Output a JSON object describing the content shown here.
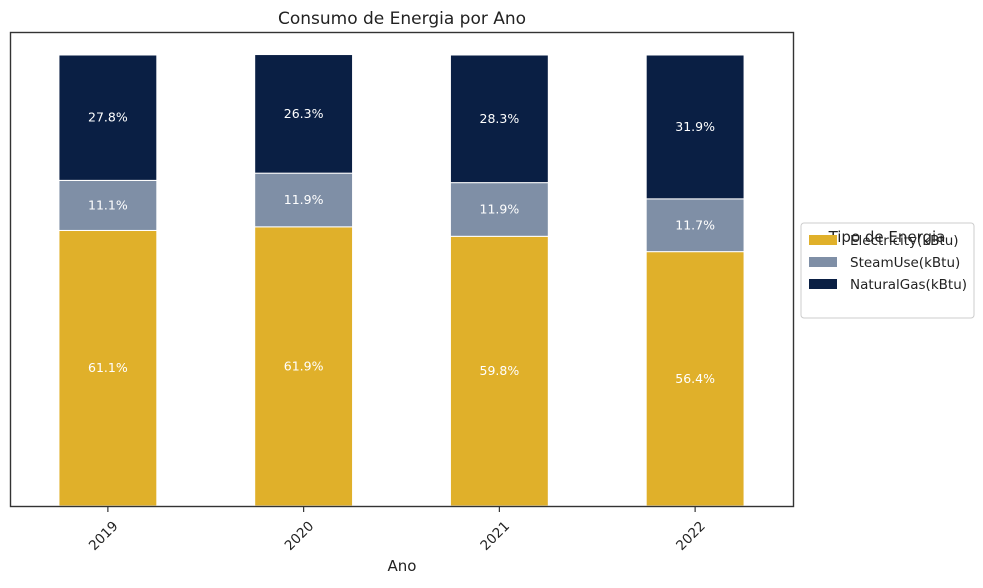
{
  "chart_data": {
    "type": "bar",
    "stacked": true,
    "title": "Consumo de Energia por Ano",
    "xlabel": "Ano",
    "ylabel": "",
    "ylim": [
      0,
      100
    ],
    "categories": [
      "2019",
      "2020",
      "2021",
      "2022"
    ],
    "series": [
      {
        "name": "Electricity(kBtu)",
        "color": "#E0B02A",
        "values": [
          61.1,
          61.9,
          59.8,
          56.4
        ]
      },
      {
        "name": "SteamUse(kBtu)",
        "color": "#7F8FA6",
        "values": [
          11.1,
          11.9,
          11.9,
          11.7
        ]
      },
      {
        "name": "NaturalGas(kBtu)",
        "color": "#0A1F44",
        "values": [
          27.8,
          26.3,
          28.3,
          31.9
        ]
      }
    ],
    "data_labels": [
      [
        "61.1%",
        "61.9%",
        "59.8%",
        "56.4%"
      ],
      [
        "11.1%",
        "11.9%",
        "11.9%",
        "11.7%"
      ],
      [
        "27.8%",
        "26.3%",
        "28.3%",
        "31.9%"
      ]
    ],
    "legend": {
      "title": "Tipo de Energia",
      "position": "center-right-outside"
    },
    "grid": false
  }
}
